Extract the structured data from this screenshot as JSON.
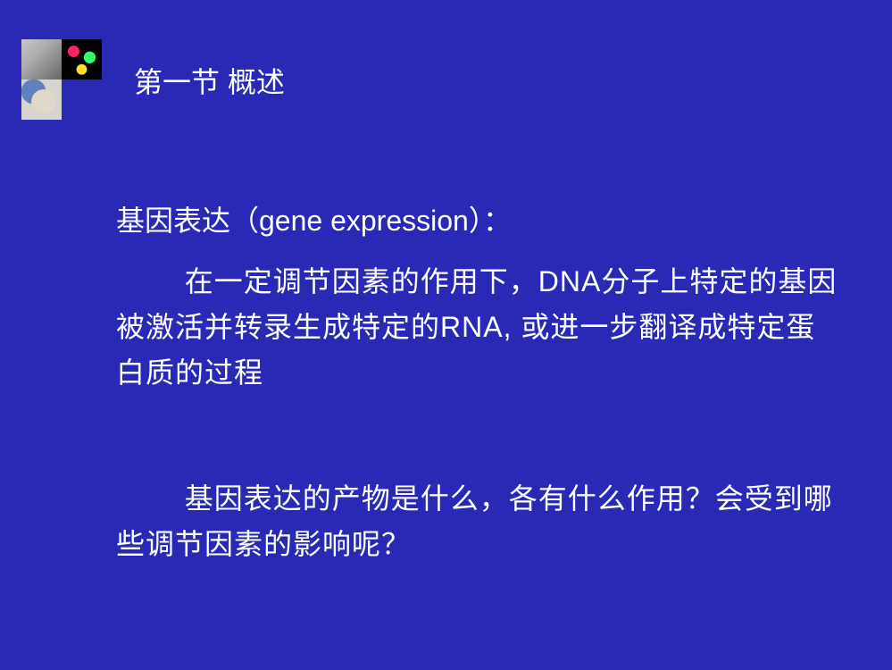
{
  "background_color": "#2929b5",
  "text_color": "#ffffff",
  "font_size_pt": 24,
  "decor_tiles": {
    "layout": "2x2-top-then-1-bottom-left",
    "tiles": [
      {
        "name": "sculpture-thumbnail",
        "palette": [
          "#c8c8c8",
          "#888888",
          "#666666"
        ]
      },
      {
        "name": "chromosome-thumbnail",
        "palette": [
          "#000000",
          "#ff2266",
          "#33ff66",
          "#ffdd33"
        ]
      },
      {
        "name": "brain-thumbnail",
        "palette": [
          "#d8d4d0",
          "#e0d8c8",
          "#6080c0"
        ]
      },
      {
        "name": "empty"
      }
    ]
  },
  "section_title": "第一节  概述",
  "subtitle": "基因表达（gene expression）：",
  "definition": "在一定调节因素的作用下，DNA分子上特定的基因被激活并转录生成特定的RNA, 或进一步翻译成特定蛋白质的过程",
  "question": "基因表达的产物是什么，各有什么作用？会受到哪些调节因素的影响呢？"
}
